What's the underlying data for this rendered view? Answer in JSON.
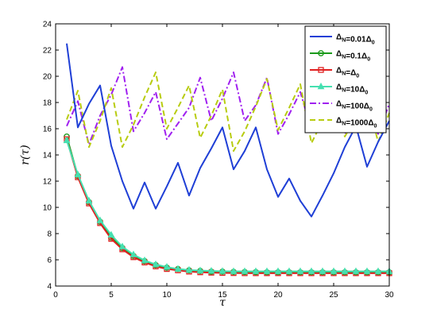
{
  "chart_data": {
    "type": "line",
    "title": "",
    "xlabel": "τ",
    "ylabel": "r(τ)",
    "xlim": [
      0,
      30
    ],
    "ylim": [
      4,
      24
    ],
    "xticks": [
      0,
      5,
      10,
      15,
      20,
      25,
      30
    ],
    "yticks": [
      4,
      6,
      8,
      10,
      12,
      14,
      16,
      18,
      20,
      22,
      24
    ],
    "grid": false,
    "legend_position": "top-right",
    "x": [
      1,
      2,
      3,
      4,
      5,
      6,
      7,
      8,
      9,
      10,
      11,
      12,
      13,
      14,
      15,
      16,
      17,
      18,
      19,
      20,
      21,
      22,
      23,
      24,
      25,
      26,
      27,
      28,
      29,
      30
    ],
    "series": [
      {
        "name": "ΔN=0.01Δ0",
        "legend": {
          "sym": "Δ",
          "sub": "N",
          "mid": "=0.01",
          "sym2": "Δ",
          "sub2": "0"
        },
        "color": "#1f3fd6",
        "dash": "solid",
        "marker": "none",
        "values": [
          22.5,
          16.1,
          17.9,
          19.3,
          14.7,
          12.0,
          9.9,
          11.9,
          9.9,
          11.6,
          13.4,
          10.9,
          13.0,
          14.5,
          16.1,
          12.9,
          14.3,
          16.1,
          12.9,
          10.8,
          12.2,
          10.5,
          9.3,
          10.9,
          12.6,
          14.6,
          16.2,
          13.1,
          15.0,
          16.6
        ]
      },
      {
        "name": "ΔN=0.1Δ0",
        "legend": {
          "sym": "Δ",
          "sub": "N",
          "mid": "=0.1",
          "sym2": "Δ",
          "sub2": "0"
        },
        "color": "#1a9a1a",
        "dash": "solid",
        "marker": "circle",
        "values": [
          15.4,
          12.4,
          10.4,
          8.9,
          7.7,
          6.9,
          6.3,
          5.9,
          5.6,
          5.4,
          5.3,
          5.2,
          5.15,
          5.1,
          5.1,
          5.08,
          5.07,
          5.06,
          5.05,
          5.05,
          5.05,
          5.05,
          5.05,
          5.05,
          5.05,
          5.05,
          5.05,
          5.05,
          5.05,
          5.05
        ]
      },
      {
        "name": "ΔN=Δ0",
        "legend": {
          "sym": "Δ",
          "sub": "N",
          "mid": "=",
          "sym2": "Δ",
          "sub2": "0"
        },
        "color": "#e02020",
        "dash": "solid",
        "marker": "square",
        "values": [
          15.2,
          12.3,
          10.3,
          8.8,
          7.6,
          6.8,
          6.2,
          5.8,
          5.5,
          5.3,
          5.2,
          5.1,
          5.05,
          5.02,
          5.0,
          4.99,
          4.98,
          4.98,
          4.98,
          4.98,
          4.98,
          4.98,
          4.98,
          4.98,
          4.98,
          4.98,
          4.98,
          4.98,
          4.98,
          4.98
        ]
      },
      {
        "name": "ΔN=10Δ0",
        "legend": {
          "sym": "Δ",
          "sub": "N",
          "mid": "=10",
          "sym2": "Δ",
          "sub2": "0"
        },
        "color": "#45e0b0",
        "dash": "solid",
        "marker": "triangle",
        "values": [
          15.1,
          12.5,
          10.5,
          9.0,
          7.9,
          7.0,
          6.4,
          5.95,
          5.65,
          5.45,
          5.3,
          5.22,
          5.18,
          5.15,
          5.13,
          5.12,
          5.12,
          5.12,
          5.12,
          5.12,
          5.12,
          5.12,
          5.12,
          5.12,
          5.12,
          5.12,
          5.12,
          5.12,
          5.12,
          5.12
        ]
      },
      {
        "name": "ΔN=100Δ0",
        "legend": {
          "sym": "Δ",
          "sub": "N",
          "mid": "=100",
          "sym2": "Δ",
          "sub2": "0"
        },
        "color": "#a020f0",
        "dash": "dashdot",
        "marker": "none",
        "values": [
          16.2,
          18.1,
          14.8,
          17.0,
          18.6,
          20.7,
          15.8,
          17.2,
          18.8,
          15.2,
          16.4,
          17.6,
          19.9,
          16.6,
          18.3,
          20.3,
          16.6,
          17.8,
          19.9,
          15.6,
          17.1,
          18.8,
          15.9,
          17.5,
          19.1,
          15.6,
          16.3,
          17.5,
          15.6,
          17.9
        ]
      },
      {
        "name": "ΔN=1000Δ0",
        "legend": {
          "sym": "Δ",
          "sub": "N",
          "mid": "=1000",
          "sym2": "Δ",
          "sub2": "0"
        },
        "color": "#b8cc10",
        "dash": "dashed",
        "marker": "none",
        "values": [
          16.7,
          18.9,
          14.6,
          16.6,
          19.1,
          14.6,
          16.3,
          18.4,
          20.3,
          16.0,
          17.6,
          19.3,
          15.3,
          17.0,
          19.0,
          14.3,
          15.8,
          17.7,
          19.8,
          15.9,
          17.6,
          19.4,
          14.9,
          16.6,
          18.3,
          15.4,
          16.8,
          18.2,
          15.0,
          17.2
        ]
      }
    ]
  }
}
